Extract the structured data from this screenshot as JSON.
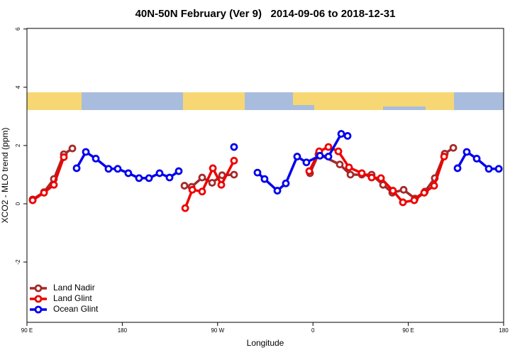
{
  "chart_data": {
    "type": "line",
    "title": "40N-50N February (Ver 9)   2014-09-06 to 2018-12-31",
    "x_label": "Longitude",
    "y_label": "XCO2 - MLO trend (ppm)",
    "xlim": [
      90,
      540
    ],
    "ylim": [
      -4.07,
      6.02
    ],
    "xticks": [
      {
        "value": 90,
        "label": "90 E"
      },
      {
        "value": 180,
        "label": "180"
      },
      {
        "value": 270,
        "label": "90 W"
      },
      {
        "value": 360,
        "label": "0"
      },
      {
        "value": 450,
        "label": "90 E"
      },
      {
        "value": 540,
        "label": "180"
      }
    ],
    "yticks": [
      -2,
      0,
      2,
      4,
      6
    ],
    "legend": "bottom-left",
    "series": [
      {
        "name": "Land Nadir",
        "color": "#a52a2a",
        "x": [
          95.4,
          106.1,
          115.4,
          124.8,
          132.9,
          null,
          238.7,
          245.4,
          255.4,
          264.8,
          274.2,
          285.5,
          null,
          357.2,
          365.2,
          385.3,
          395.4,
          406.1,
          415.4,
          426.2,
          434.9,
          445.6,
          456.3,
          465.7,
          475,
          484.4,
          492.5
        ],
        "values": [
          0.15,
          0.4,
          0.85,
          1.7,
          1.9,
          null,
          0.62,
          0.58,
          0.9,
          0.72,
          0.98,
          1.0,
          null,
          1.05,
          1.7,
          1.35,
          1.0,
          1.0,
          1.0,
          0.65,
          0.38,
          0.48,
          0.18,
          0.42,
          0.88,
          1.72,
          1.92
        ]
      },
      {
        "name": "Land Glint",
        "color": "#ee0000",
        "x": [
          95.4,
          106.1,
          115.4,
          124.8,
          null,
          239.4,
          246.1,
          255.4,
          265.5,
          273.5,
          285.5,
          null,
          356.5,
          365.9,
          374.6,
          384,
          394,
          406.1,
          415.4,
          424.2,
          435.5,
          444.9,
          455.6,
          465,
          474.4,
          483.8
        ],
        "values": [
          0.12,
          0.38,
          0.65,
          1.6,
          null,
          -0.15,
          0.48,
          0.42,
          1.22,
          0.65,
          1.48,
          null,
          1.12,
          1.8,
          1.95,
          1.8,
          1.25,
          1.05,
          0.9,
          0.88,
          0.45,
          0.05,
          0.12,
          0.38,
          0.62,
          1.62
        ]
      },
      {
        "name": "Ocean Glint",
        "color": "#0000ee",
        "x": [
          136.9,
          145.6,
          155,
          167,
          175.7,
          185.7,
          195.8,
          205.2,
          215.2,
          224.6,
          233.3,
          null,
          285.5,
          null,
          307.6,
          314.3,
          326.4,
          334.4,
          345.1,
          353.8,
          366.6,
          374.6,
          386.7,
          392.7,
          null,
          496.5,
          505.2,
          514.6,
          526,
          535.4
        ],
        "values": [
          1.22,
          1.78,
          1.55,
          1.2,
          1.2,
          1.05,
          0.88,
          0.88,
          1.05,
          0.9,
          1.12,
          null,
          1.95,
          null,
          1.07,
          0.85,
          0.45,
          0.7,
          1.62,
          1.42,
          1.65,
          1.62,
          2.4,
          2.33,
          null,
          1.22,
          1.78,
          1.55,
          1.2,
          1.2
        ]
      }
    ]
  }
}
